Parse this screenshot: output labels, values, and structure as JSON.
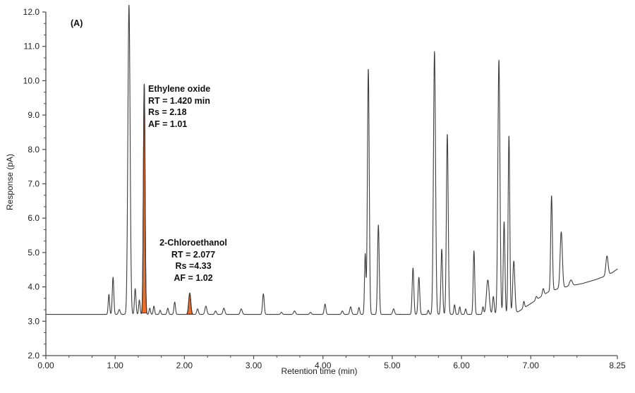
{
  "chart_data": {
    "type": "line",
    "panel_label": "(A)",
    "xlabel": "Retention time (min)",
    "ylabel": "Response (pA)",
    "xlim": [
      0,
      8.25
    ],
    "ylim": [
      2.0,
      12.0
    ],
    "x_major_ticks": [
      0,
      1,
      2,
      3,
      4,
      5,
      6,
      7,
      8.25
    ],
    "x_tick_labels": [
      "0.00",
      "1.00",
      "2.00",
      "3.00",
      "4.00",
      "5.00",
      "6.00",
      "7.00",
      "8.25"
    ],
    "y_major_ticks": [
      2,
      3,
      4,
      5,
      6,
      7,
      8,
      9,
      10,
      11,
      12
    ],
    "y_tick_labels": [
      "2.0",
      "3.0",
      "4.0",
      "5.0",
      "6.0",
      "7.0",
      "8.0",
      "9.0",
      "10.0",
      "11.0",
      "12.0"
    ],
    "minor_tick_divisions": 3,
    "grid": false,
    "line_color": "#3d3d3d",
    "axis_color": "#4a4a4a",
    "highlight_fill": "#e8712d",
    "highlight_stroke": "#772a1b",
    "baseline_points": [
      [
        0.0,
        3.2
      ],
      [
        6.7,
        3.2
      ],
      [
        6.82,
        3.28
      ],
      [
        6.95,
        3.45
      ],
      [
        7.05,
        3.58
      ],
      [
        7.15,
        3.72
      ],
      [
        7.25,
        3.85
      ],
      [
        7.4,
        3.95
      ],
      [
        7.55,
        4.02
      ],
      [
        7.75,
        4.1
      ],
      [
        7.95,
        4.22
      ],
      [
        8.08,
        4.32
      ],
      [
        8.18,
        4.42
      ],
      [
        8.25,
        4.52
      ]
    ],
    "peaks": [
      {
        "t": 0.91,
        "apex": 3.78,
        "sigma": 0.01
      },
      {
        "t": 0.97,
        "apex": 4.28,
        "sigma": 0.011
      },
      {
        "t": 1.06,
        "apex": 3.34,
        "sigma": 0.013
      },
      {
        "t": 1.2,
        "apex": 12.2,
        "sigma": 0.016
      },
      {
        "t": 1.29,
        "apex": 3.95,
        "sigma": 0.011
      },
      {
        "t": 1.35,
        "apex": 3.62,
        "sigma": 0.01
      },
      {
        "t": 1.5,
        "apex": 3.38,
        "sigma": 0.01
      },
      {
        "t": 1.56,
        "apex": 3.44,
        "sigma": 0.01
      },
      {
        "t": 1.65,
        "apex": 3.32,
        "sigma": 0.01
      },
      {
        "t": 1.76,
        "apex": 3.38,
        "sigma": 0.011
      },
      {
        "t": 1.86,
        "apex": 3.56,
        "sigma": 0.011
      },
      {
        "t": 2.19,
        "apex": 3.36,
        "sigma": 0.012
      },
      {
        "t": 2.31,
        "apex": 3.44,
        "sigma": 0.014
      },
      {
        "t": 2.45,
        "apex": 3.3,
        "sigma": 0.012
      },
      {
        "t": 2.57,
        "apex": 3.38,
        "sigma": 0.014
      },
      {
        "t": 2.82,
        "apex": 3.36,
        "sigma": 0.014
      },
      {
        "t": 3.14,
        "apex": 3.8,
        "sigma": 0.012
      },
      {
        "t": 3.4,
        "apex": 3.26,
        "sigma": 0.012
      },
      {
        "t": 3.59,
        "apex": 3.3,
        "sigma": 0.014
      },
      {
        "t": 3.82,
        "apex": 3.26,
        "sigma": 0.012
      },
      {
        "t": 4.03,
        "apex": 3.5,
        "sigma": 0.012
      },
      {
        "t": 4.28,
        "apex": 3.3,
        "sigma": 0.012
      },
      {
        "t": 4.4,
        "apex": 3.42,
        "sigma": 0.013
      },
      {
        "t": 4.52,
        "apex": 3.4,
        "sigma": 0.011
      },
      {
        "t": 4.61,
        "apex": 4.95,
        "sigma": 0.01
      },
      {
        "t": 4.655,
        "apex": 10.35,
        "sigma": 0.013
      },
      {
        "t": 4.8,
        "apex": 5.8,
        "sigma": 0.012
      },
      {
        "t": 5.02,
        "apex": 3.36,
        "sigma": 0.013
      },
      {
        "t": 5.3,
        "apex": 4.55,
        "sigma": 0.012
      },
      {
        "t": 5.385,
        "apex": 4.28,
        "sigma": 0.012
      },
      {
        "t": 5.52,
        "apex": 3.32,
        "sigma": 0.01
      },
      {
        "t": 5.61,
        "apex": 10.85,
        "sigma": 0.015
      },
      {
        "t": 5.715,
        "apex": 5.1,
        "sigma": 0.012
      },
      {
        "t": 5.795,
        "apex": 8.45,
        "sigma": 0.013
      },
      {
        "t": 5.9,
        "apex": 3.48,
        "sigma": 0.01
      },
      {
        "t": 5.975,
        "apex": 3.42,
        "sigma": 0.01
      },
      {
        "t": 6.06,
        "apex": 3.36,
        "sigma": 0.01
      },
      {
        "t": 6.18,
        "apex": 5.05,
        "sigma": 0.011
      },
      {
        "t": 6.31,
        "apex": 3.42,
        "sigma": 0.01
      },
      {
        "t": 6.38,
        "apex": 4.2,
        "sigma": 0.02
      },
      {
        "t": 6.46,
        "apex": 3.72,
        "sigma": 0.012
      },
      {
        "t": 6.54,
        "apex": 10.6,
        "sigma": 0.015
      },
      {
        "t": 6.615,
        "apex": 5.9,
        "sigma": 0.012
      },
      {
        "t": 6.685,
        "apex": 8.4,
        "sigma": 0.012
      },
      {
        "t": 6.755,
        "apex": 4.75,
        "sigma": 0.015
      },
      {
        "t": 6.9,
        "apex": 3.58,
        "sigma": 0.01
      },
      {
        "t": 7.08,
        "apex": 3.72,
        "sigma": 0.012
      },
      {
        "t": 7.18,
        "apex": 3.95,
        "sigma": 0.012
      },
      {
        "t": 7.3,
        "apex": 6.65,
        "sigma": 0.012
      },
      {
        "t": 7.44,
        "apex": 5.6,
        "sigma": 0.016
      },
      {
        "t": 7.58,
        "apex": 4.2,
        "sigma": 0.02
      },
      {
        "t": 8.1,
        "apex": 4.9,
        "sigma": 0.016
      }
    ],
    "highlighted_peaks": [
      {
        "name": "Ethylene oxide",
        "rt_min": 1.42,
        "rs": 2.18,
        "af": 1.01,
        "apex_pA": 9.9,
        "sigma": 0.012
      },
      {
        "name": "2-Chloroethanol",
        "rt_min": 2.077,
        "rs": 4.33,
        "af": 1.02,
        "apex_pA": 3.82,
        "sigma": 0.015
      }
    ],
    "annotations": [
      {
        "lines": [
          "Ethylene oxide",
          "RT = 1.420 min",
          "Rs = 2.18",
          "AF = 1.01"
        ],
        "align": "left"
      },
      {
        "lines": [
          "2-Chloroethanol",
          "RT = 2.077",
          "Rs =4.33",
          "AF = 1.02"
        ],
        "align": "center"
      }
    ]
  }
}
